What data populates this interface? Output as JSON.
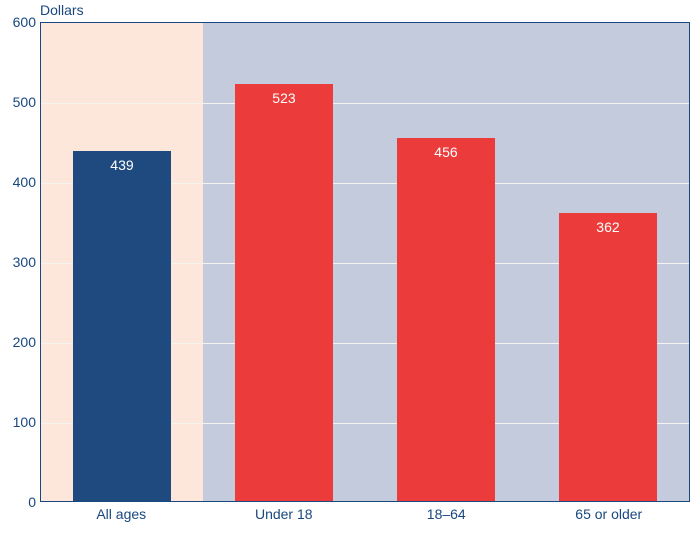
{
  "chart": {
    "type": "bar",
    "y_axis_title": "Dollars",
    "y_axis_title_color": "#19477f",
    "ylim": [
      0,
      600
    ],
    "ytick_step": 100,
    "yticks": [
      0,
      100,
      200,
      300,
      400,
      500,
      600
    ],
    "tick_label_color": "#19477f",
    "tick_label_fontsize": 14,
    "plot_border_color": "#19477f",
    "grid_color": "#f5f2ef",
    "bg_regions": [
      {
        "start_pct": 0,
        "end_pct": 25,
        "color": "#fce7da"
      },
      {
        "start_pct": 25,
        "end_pct": 100,
        "color": "#c3cbdd"
      }
    ],
    "bar_width_pct": 15,
    "bar_gap_pct": 10,
    "value_label_color": "#ffffff",
    "bars": [
      {
        "label": "All ages",
        "value": 439,
        "color": "#1f4a7f",
        "value_text": "439"
      },
      {
        "label": "Under 18",
        "value": 523,
        "color": "#eb3b3b",
        "value_text": "523"
      },
      {
        "label": "18–64",
        "value": 456,
        "color": "#eb3b3b",
        "value_text": "456"
      },
      {
        "label": "65 or older",
        "value": 362,
        "color": "#eb3b3b",
        "value_text": "362"
      }
    ]
  }
}
